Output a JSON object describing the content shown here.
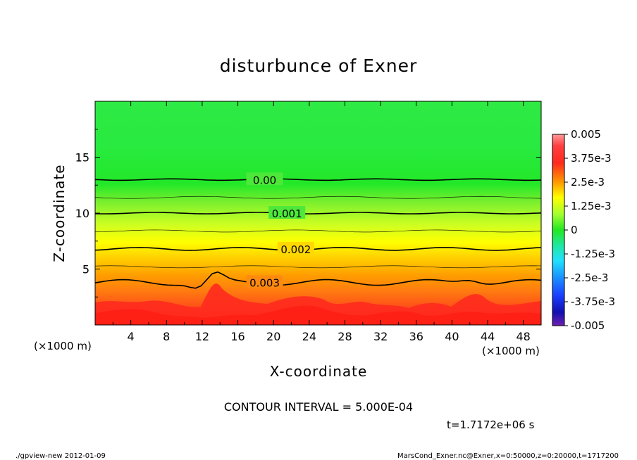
{
  "chart_data": {
    "type": "heatmap",
    "title": "disturbunce of Exner",
    "xlabel": "X-coordinate",
    "ylabel": "Z-coordinate",
    "x_unit": "(×1000 m)",
    "y_unit": "(×1000 m)",
    "xlim": [
      0,
      50
    ],
    "ylim": [
      0,
      20
    ],
    "x_ticks": [
      4,
      8,
      12,
      16,
      20,
      24,
      28,
      32,
      36,
      40,
      44,
      48
    ],
    "y_ticks": [
      5,
      10,
      15
    ],
    "colorbar": {
      "labels": [
        "0.005",
        "3.75e-3",
        "2.5e-3",
        "1.25e-3",
        "0",
        "-1.25e-3",
        "-2.5e-3",
        "-3.75e-3",
        "-0.005"
      ],
      "min": -0.005,
      "max": 0.005
    },
    "contours": [
      {
        "label": "0.00",
        "z": 13
      },
      {
        "label": "0.001",
        "z": 10
      },
      {
        "label": "0.002",
        "z": 6.8
      },
      {
        "label": "0.003",
        "z": 3.8
      }
    ],
    "contour_interval": "CONTOUR INTERVAL = 5.000E-04",
    "time": "t=1.7172e+06 s",
    "footer_left": "./gpview-new  2012-01-09",
    "footer_right": "MarsCond_Exner.nc@Exner,x=0:50000,z=0:20000,t=1717200",
    "colors": {
      "red": "#ff2a1e",
      "orange": "#ff9a00",
      "yellow": "#ffff00",
      "green": "#22e822",
      "contour_line": "#000000"
    }
  }
}
